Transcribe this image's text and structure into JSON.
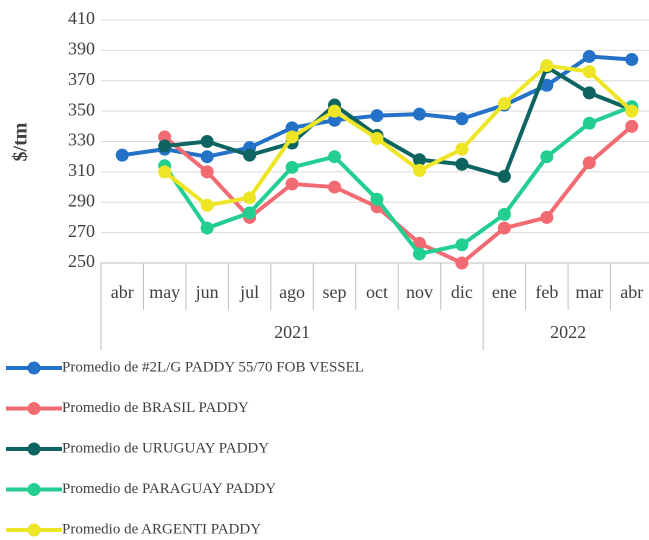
{
  "chart_data": {
    "type": "line",
    "y_label": "$/tm",
    "categories": [
      "abr",
      "may",
      "jun",
      "jul",
      "ago",
      "sep",
      "oct",
      "nov",
      "dic",
      "ene",
      "feb",
      "mar",
      "abr"
    ],
    "category_years": [
      "2021",
      "2021",
      "2021",
      "2021",
      "2021",
      "2021",
      "2021",
      "2021",
      "2021",
      "2022",
      "2022",
      "2022",
      "2022"
    ],
    "series": [
      {
        "name": "Promedio de #2L/G PADDY 55/70 FOB VESSEL",
        "color": "#2372c8",
        "values": [
          321,
          325,
          320,
          326,
          339,
          344,
          347,
          348,
          345,
          354,
          367,
          386,
          384
        ]
      },
      {
        "name": "Promedio de BRASIL PADDY",
        "color": "#f26b73",
        "values": [
          null,
          333,
          310,
          280,
          302,
          300,
          287,
          263,
          250,
          273,
          280,
          316,
          340
        ]
      },
      {
        "name": "Promedio de URUGUAY PADDY",
        "color": "#0e6460",
        "values": [
          null,
          327,
          330,
          321,
          329,
          354,
          334,
          318,
          315,
          307,
          379,
          362,
          351
        ]
      },
      {
        "name": "Promedio de PARAGUAY PADDY",
        "color": "#22cf90",
        "values": [
          null,
          314,
          273,
          283,
          313,
          320,
          292,
          256,
          262,
          282,
          320,
          342,
          353
        ]
      },
      {
        "name": "Promedio de ARGENTI PADDY",
        "color": "#ede526",
        "values": [
          null,
          310,
          288,
          293,
          333,
          350,
          332,
          311,
          325,
          355,
          380,
          376,
          350
        ]
      }
    ],
    "ylim": [
      250,
      410
    ],
    "yticks": [
      250,
      270,
      290,
      310,
      330,
      350,
      370,
      390,
      410
    ],
    "grid": true
  }
}
